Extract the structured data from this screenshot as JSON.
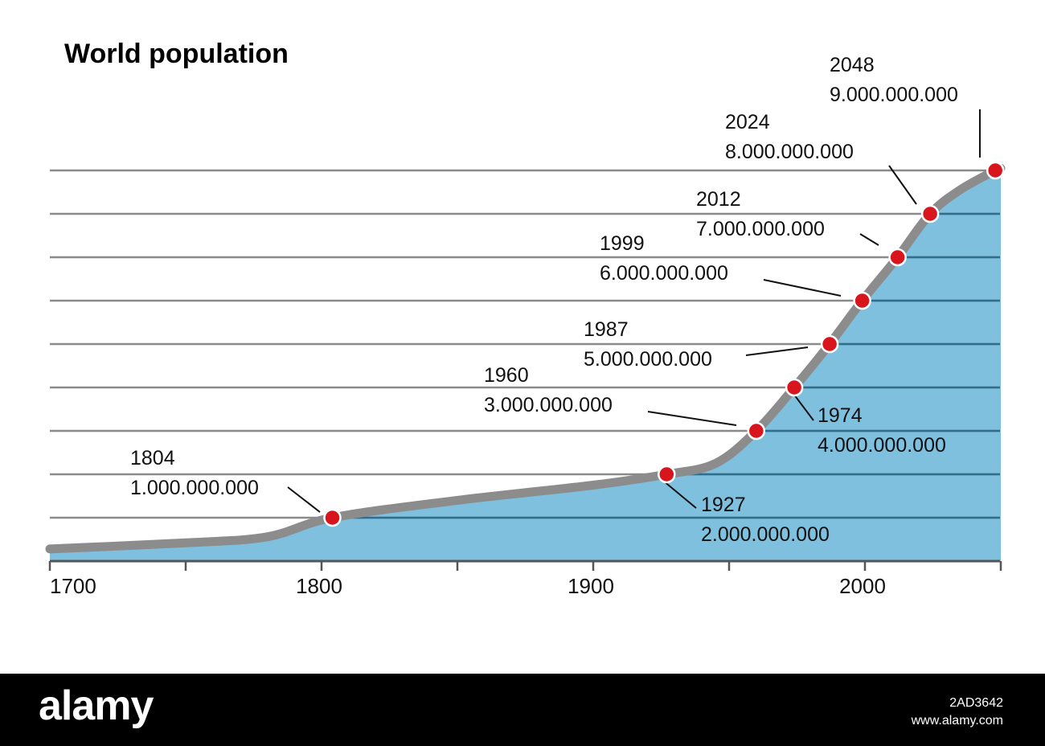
{
  "chart_data": {
    "type": "area",
    "title": "World population",
    "xlabel": "",
    "ylabel": "",
    "xlim": [
      1700,
      2050
    ],
    "ylim": [
      0,
      9000000000
    ],
    "x_ticks": [
      1700,
      1800,
      1900,
      2000
    ],
    "x_tick_labels": [
      "1700",
      "1800",
      "1900",
      "2000"
    ],
    "grid": true,
    "gridline_values": [
      1000000000,
      2000000000,
      3000000000,
      4000000000,
      5000000000,
      6000000000,
      7000000000,
      8000000000,
      9000000000
    ],
    "curve": {
      "x": [
        1700,
        1750,
        1780,
        1804,
        1850,
        1900,
        1927,
        1945,
        1960,
        1974,
        1987,
        1999,
        2012,
        2024,
        2035,
        2048,
        2050
      ],
      "y": [
        280000000,
        420000000,
        560000000,
        1000000000,
        1400000000,
        1750000000,
        2000000000,
        2250000000,
        3000000000,
        4000000000,
        5000000000,
        6000000000,
        7000000000,
        8000000000,
        8550000000,
        9000000000,
        9050000000
      ]
    },
    "milestones": [
      {
        "year_label": "1804",
        "value_label": "1.000.000.000",
        "x": 1804,
        "y": 1000000000
      },
      {
        "year_label": "1927",
        "value_label": "2.000.000.000",
        "x": 1927,
        "y": 2000000000
      },
      {
        "year_label": "1960",
        "value_label": "3.000.000.000",
        "x": 1960,
        "y": 3000000000
      },
      {
        "year_label": "1974",
        "value_label": "4.000.000.000",
        "x": 1974,
        "y": 4000000000
      },
      {
        "year_label": "1987",
        "value_label": "5.000.000.000",
        "x": 1987,
        "y": 5000000000
      },
      {
        "year_label": "1999",
        "value_label": "6.000.000.000",
        "x": 1999,
        "y": 6000000000
      },
      {
        "year_label": "2012",
        "value_label": "7.000.000.000",
        "x": 2012,
        "y": 7000000000
      },
      {
        "year_label": "2024",
        "value_label": "8.000.000.000",
        "x": 2024,
        "y": 8000000000
      },
      {
        "year_label": "2048",
        "value_label": "9.000.000.000",
        "x": 2048,
        "y": 9000000000
      }
    ],
    "colors": {
      "area_fill": "#7ec0de",
      "curve": "#8c8c8c",
      "marker_fill": "#d8141c",
      "grid_above": "#8a8a8a",
      "grid_below": "#2e6f8e",
      "axis": "#555555"
    }
  },
  "footer": {
    "logo": "alamy",
    "image_id": "2AD3642",
    "site": "www.alamy.com"
  }
}
